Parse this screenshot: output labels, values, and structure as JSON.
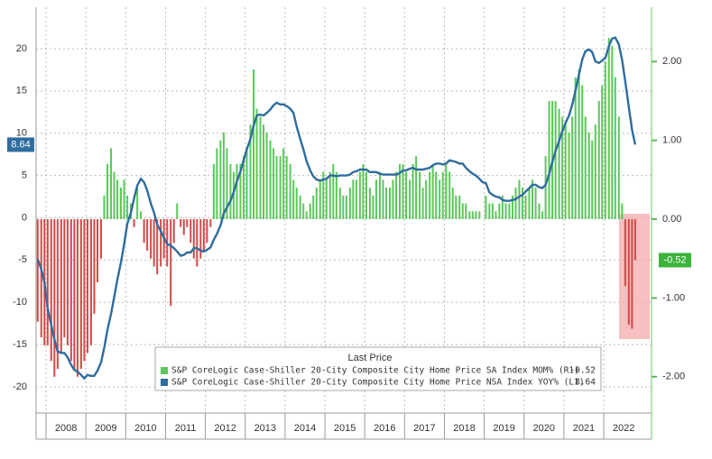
{
  "chart_data": {
    "type": "bar_line",
    "legend_title": "Last Price",
    "xlim": [
      2007.75,
      2023.2
    ],
    "xticks": [
      2008,
      2009,
      2010,
      2011,
      2012,
      2013,
      2014,
      2015,
      2016,
      2017,
      2018,
      2019,
      2020,
      2021,
      2022
    ],
    "ylim": [
      -23.1,
      24.9
    ],
    "yticks": [
      20,
      15,
      10,
      5,
      0,
      -5,
      -10,
      -15,
      -20
    ],
    "y2lim": [
      -2.46,
      2.69
    ],
    "y2ticks": [
      {
        "value": 2,
        "label": "2.00"
      },
      {
        "value": 1,
        "label": "1.00"
      },
      {
        "value": 0,
        "label": "0.00"
      },
      {
        "value": -1,
        "label": "-1.00"
      },
      {
        "value": -2,
        "label": "-2.00"
      }
    ],
    "grid": true,
    "x": [
      2007.79,
      2007.88,
      2007.96,
      2008.04,
      2008.13,
      2008.21,
      2008.29,
      2008.38,
      2008.46,
      2008.54,
      2008.63,
      2008.71,
      2008.79,
      2008.88,
      2008.96,
      2009.04,
      2009.13,
      2009.21,
      2009.29,
      2009.38,
      2009.46,
      2009.54,
      2009.63,
      2009.71,
      2009.79,
      2009.88,
      2009.96,
      2010.04,
      2010.13,
      2010.21,
      2010.29,
      2010.38,
      2010.46,
      2010.54,
      2010.63,
      2010.71,
      2010.79,
      2010.88,
      2010.96,
      2011.04,
      2011.13,
      2011.21,
      2011.29,
      2011.38,
      2011.46,
      2011.54,
      2011.63,
      2011.71,
      2011.79,
      2011.88,
      2011.96,
      2012.04,
      2012.13,
      2012.21,
      2012.29,
      2012.38,
      2012.46,
      2012.54,
      2012.63,
      2012.71,
      2012.79,
      2012.88,
      2012.96,
      2013.04,
      2013.13,
      2013.21,
      2013.29,
      2013.38,
      2013.46,
      2013.54,
      2013.63,
      2013.71,
      2013.79,
      2013.88,
      2013.96,
      2014.04,
      2014.13,
      2014.21,
      2014.29,
      2014.38,
      2014.46,
      2014.54,
      2014.63,
      2014.71,
      2014.79,
      2014.88,
      2014.96,
      2015.04,
      2015.13,
      2015.21,
      2015.29,
      2015.38,
      2015.46,
      2015.54,
      2015.63,
      2015.71,
      2015.79,
      2015.88,
      2015.96,
      2016.04,
      2016.13,
      2016.21,
      2016.29,
      2016.38,
      2016.46,
      2016.54,
      2016.63,
      2016.71,
      2016.79,
      2016.88,
      2016.96,
      2017.04,
      2017.13,
      2017.21,
      2017.29,
      2017.38,
      2017.46,
      2017.54,
      2017.63,
      2017.71,
      2017.79,
      2017.88,
      2017.96,
      2018.04,
      2018.13,
      2018.21,
      2018.29,
      2018.38,
      2018.46,
      2018.54,
      2018.63,
      2018.71,
      2018.79,
      2018.88,
      2018.96,
      2019.04,
      2019.13,
      2019.21,
      2019.29,
      2019.38,
      2019.46,
      2019.54,
      2019.63,
      2019.71,
      2019.79,
      2019.88,
      2019.96,
      2020.04,
      2020.13,
      2020.21,
      2020.29,
      2020.38,
      2020.46,
      2020.54,
      2020.63,
      2020.71,
      2020.79,
      2020.88,
      2020.96,
      2021.04,
      2021.13,
      2021.21,
      2021.29,
      2021.38,
      2021.46,
      2021.54,
      2021.63,
      2021.71,
      2021.79,
      2021.88,
      2021.96,
      2022.04,
      2022.13,
      2022.21,
      2022.29,
      2022.38,
      2022.46,
      2022.54,
      2022.63,
      2022.71,
      2022.79
    ],
    "series": [
      {
        "name": "S&P CoreLogic Case-Shiller 20-City Composite City Home Price SA Index MOM% (R1)",
        "type": "bar",
        "axis": "y2",
        "color": "#5cc85c",
        "negative_color": "#d24a4a",
        "values": [
          -1.3,
          -1.5,
          -1.6,
          -1.6,
          -1.8,
          -2.0,
          -1.9,
          -1.7,
          -1.5,
          -1.6,
          -1.8,
          -1.9,
          -2.0,
          -1.9,
          -1.8,
          -1.7,
          -1.6,
          -1.2,
          -0.8,
          -0.5,
          0.3,
          0.7,
          0.9,
          0.6,
          0.5,
          0.4,
          0.5,
          0.3,
          0.2,
          -0.1,
          0.4,
          0.1,
          -0.3,
          -0.4,
          -0.5,
          -0.6,
          -0.7,
          -0.6,
          -0.5,
          -0.6,
          -1.1,
          -0.3,
          0.2,
          -0.1,
          -0.2,
          -0.1,
          -0.3,
          -0.5,
          -0.6,
          -0.5,
          -0.4,
          -0.3,
          -0.1,
          0.7,
          0.9,
          1.0,
          1.1,
          0.9,
          0.7,
          0.6,
          0.7,
          0.7,
          0.8,
          0.9,
          1.2,
          1.9,
          1.4,
          1.3,
          1.2,
          1.1,
          1.0,
          0.9,
          0.8,
          0.8,
          0.9,
          0.8,
          0.7,
          0.5,
          0.4,
          0.3,
          0.2,
          0.1,
          0.2,
          0.3,
          0.4,
          0.5,
          0.6,
          0.5,
          0.6,
          0.7,
          0.6,
          0.4,
          0.3,
          0.3,
          0.4,
          0.5,
          0.5,
          0.6,
          0.7,
          0.6,
          0.4,
          0.3,
          0.5,
          0.6,
          0.5,
          0.4,
          0.4,
          0.5,
          0.6,
          0.7,
          0.7,
          0.6,
          0.5,
          0.7,
          0.8,
          0.6,
          0.4,
          0.5,
          0.6,
          0.7,
          0.6,
          0.5,
          0.6,
          0.7,
          0.6,
          0.4,
          0.3,
          0.3,
          0.2,
          0.2,
          0.1,
          0.1,
          0.1,
          0.1,
          0.0,
          0.3,
          0.2,
          0.2,
          0.1,
          0.2,
          0.3,
          0.2,
          0.2,
          0.3,
          0.4,
          0.5,
          0.4,
          0.3,
          0.4,
          0.5,
          0.4,
          0.2,
          0.1,
          0.8,
          1.5,
          1.5,
          1.5,
          1.4,
          1.3,
          1.2,
          1.1,
          1.3,
          1.8,
          1.9,
          1.7,
          1.3,
          1.1,
          1.0,
          1.2,
          1.5,
          1.7,
          2.0,
          2.3,
          2.2,
          1.8,
          1.3,
          0.2,
          -0.85,
          -1.34,
          -1.39,
          -0.52
        ]
      },
      {
        "name": "S&P CoreLogic Case-Shiller 20-City Composite City Home Price NSA Index YOY% (L1)",
        "type": "line",
        "axis": "y",
        "color": "#2f6c9e",
        "values": [
          -4.9,
          -6.1,
          -7.7,
          -10.7,
          -12.7,
          -14.4,
          -15.8,
          -16.0,
          -16.0,
          -16.5,
          -17.4,
          -18.0,
          -18.2,
          -18.6,
          -19.0,
          -18.6,
          -18.7,
          -18.7,
          -18.1,
          -17.1,
          -15.4,
          -13.3,
          -11.4,
          -9.4,
          -7.3,
          -5.3,
          -3.1,
          -0.7,
          0.6,
          2.3,
          3.8,
          4.6,
          4.2,
          3.2,
          1.7,
          0.6,
          -0.8,
          -1.6,
          -2.4,
          -3.1,
          -3.3,
          -3.6,
          -4.0,
          -4.5,
          -4.4,
          -4.1,
          -4.1,
          -3.6,
          -3.6,
          -3.9,
          -4.0,
          -3.8,
          -3.5,
          -2.6,
          -1.9,
          -0.9,
          0.5,
          1.2,
          2.0,
          3.0,
          4.3,
          5.5,
          6.8,
          8.1,
          9.3,
          10.9,
          12.1,
          12.2,
          12.1,
          12.4,
          12.8,
          13.3,
          13.6,
          13.4,
          13.4,
          13.2,
          12.9,
          12.4,
          10.8,
          9.3,
          8.1,
          6.7,
          5.6,
          4.9,
          4.5,
          4.4,
          4.5,
          4.6,
          5.0,
          5.0,
          4.9,
          5.0,
          5.0,
          5.0,
          5.1,
          5.4,
          5.5,
          5.7,
          5.7,
          5.7,
          5.4,
          5.4,
          5.4,
          5.2,
          5.1,
          5.1,
          5.1,
          5.1,
          5.1,
          5.3,
          5.6,
          5.6,
          5.8,
          5.9,
          5.7,
          5.7,
          5.7,
          5.8,
          5.9,
          6.2,
          6.4,
          6.4,
          6.3,
          6.4,
          6.8,
          6.7,
          6.6,
          6.4,
          6.4,
          5.9,
          5.5,
          5.2,
          5.0,
          4.6,
          4.2,
          4.1,
          3.0,
          2.7,
          2.5,
          2.4,
          2.1,
          2.0,
          2.0,
          2.1,
          2.2,
          2.5,
          2.7,
          3.1,
          3.5,
          3.9,
          3.9,
          3.6,
          3.5,
          3.9,
          5.2,
          6.6,
          7.9,
          9.1,
          10.2,
          11.2,
          12.1,
          13.4,
          15.0,
          17.0,
          18.7,
          19.7,
          19.9,
          19.6,
          18.5,
          18.3,
          18.6,
          18.9,
          20.3,
          21.2,
          21.3,
          20.5,
          18.7,
          16.1,
          13.1,
          10.4,
          8.64
        ]
      }
    ]
  }
}
